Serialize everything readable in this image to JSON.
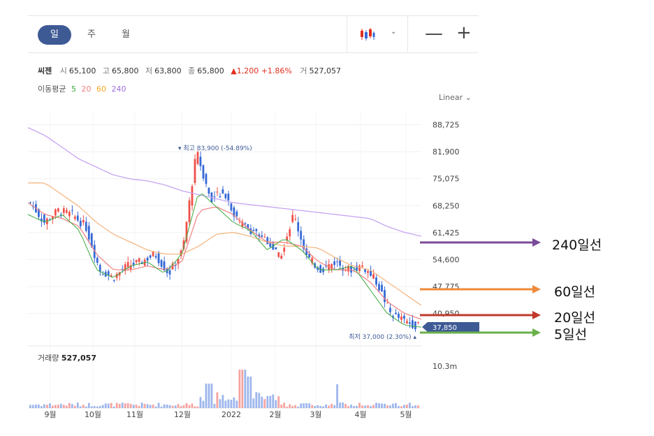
{
  "toolbar": {
    "tabs": [
      {
        "label": "일",
        "active": true
      },
      {
        "label": "주",
        "active": false
      },
      {
        "label": "월",
        "active": false
      }
    ],
    "chart_type_icon": "candlestick-icon",
    "zoom_out": "—",
    "zoom_in": "+"
  },
  "quote": {
    "name": "씨젠",
    "open_label": "시",
    "open": "65,100",
    "high_label": "고",
    "high": "65,800",
    "low_label": "저",
    "low": "63,800",
    "close_label": "종",
    "close": "65,800",
    "change": "▲1,200 +1.86%",
    "volume_label": "거",
    "volume": "527,057"
  },
  "moving_average": {
    "label": "이동평균",
    "periods": [
      {
        "value": "5",
        "color": "#3cab3c"
      },
      {
        "value": "20",
        "color": "#f08080"
      },
      {
        "value": "60",
        "color": "#f5a623"
      },
      {
        "value": "240",
        "color": "#a070e0"
      }
    ]
  },
  "scale_select": "Linear",
  "colors": {
    "up": "#f0504a",
    "down": "#3668d6",
    "ma5": "#3cab3c",
    "ma20": "#f08080",
    "ma60": "#f5b885",
    "ma240": "#c7a4f2",
    "current_price_bg": "#3e5a95"
  },
  "chart_data": {
    "type": "candlestick",
    "y_ticks": [
      "88,725",
      "81,900",
      "75,075",
      "68,250",
      "61,425",
      "54,600",
      "47,775",
      "40,950"
    ],
    "ylim": [
      34000,
      92000
    ],
    "x_ticks": [
      "9월",
      "10월",
      "11월",
      "12월",
      "2022",
      "2월",
      "3월",
      "4월",
      "5월"
    ],
    "high_marker": "최고 83,900 (-54.89%)",
    "low_marker": "최저 37,000 (2.30%)",
    "current_price": "37,850",
    "ma5_path": [
      66000,
      64000,
      66000,
      62000,
      52000,
      50000,
      53000,
      54000,
      51000,
      56000,
      72000,
      68000,
      64000,
      62000,
      57000,
      60000,
      57000,
      52000,
      52000,
      53000,
      47000,
      41000,
      38000,
      37500
    ],
    "ma20_path": [
      69000,
      66000,
      65000,
      63000,
      56000,
      52000,
      52000,
      53000,
      52000,
      54000,
      67000,
      68000,
      66000,
      62000,
      59000,
      59000,
      58000,
      54000,
      52000,
      52000,
      49000,
      44000,
      41000,
      39500
    ],
    "ma60_path": [
      74000,
      74000,
      71000,
      68000,
      64000,
      61000,
      59000,
      57000,
      56000,
      56000,
      58000,
      61000,
      61500,
      60500,
      59000,
      58000,
      58000,
      57500,
      55000,
      53000,
      52000,
      49000,
      46000,
      43000
    ],
    "ma240_path": [
      88000,
      86000,
      83000,
      80000,
      78000,
      76000,
      75000,
      74500,
      73500,
      72000,
      71000,
      70000,
      69000,
      68500,
      68000,
      67500,
      67000,
      66500,
      66000,
      65500,
      65000,
      63000,
      61500,
      60500
    ],
    "close_path": [
      69000,
      64000,
      67000,
      66000,
      63000,
      52000,
      50000,
      53000,
      54000,
      56000,
      51000,
      57000,
      82000,
      70000,
      72000,
      64000,
      62000,
      60000,
      55000,
      66000,
      55000,
      52000,
      54000,
      52000,
      53000,
      49000,
      41000,
      39000,
      37800
    ],
    "volume": {
      "label": "거래량",
      "value": "527,057",
      "max_tick": "10.3m"
    }
  },
  "annotations": [
    {
      "label": "240일선",
      "color": "#7a4b9a"
    },
    {
      "label": "60일선",
      "color": "#ee8a3a"
    },
    {
      "label": "20일선",
      "color": "#c0392b"
    },
    {
      "label": "5일선",
      "color": "#6ab04c"
    }
  ]
}
